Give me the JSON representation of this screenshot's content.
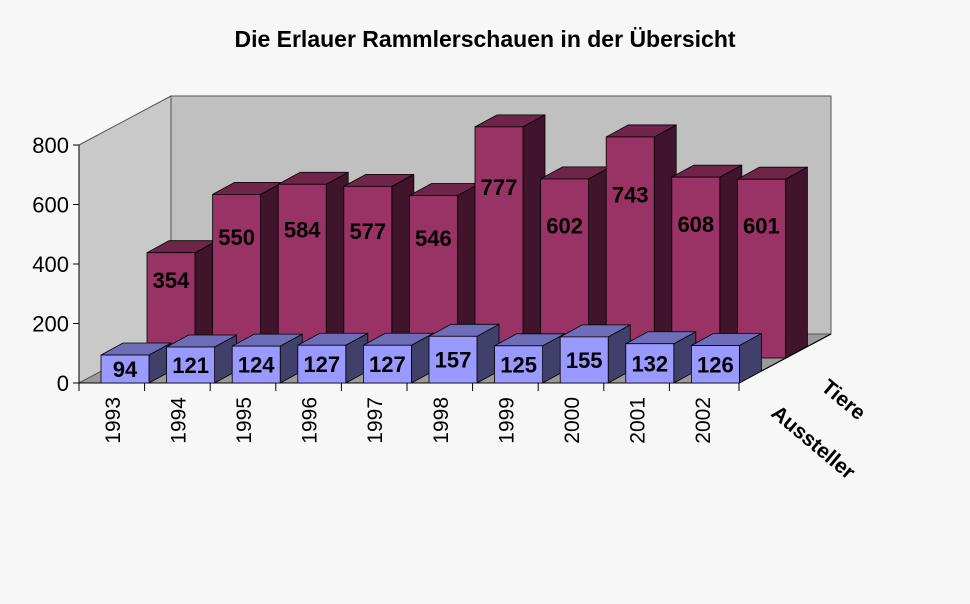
{
  "chart_data": {
    "type": "bar",
    "title": "Die Erlauer Rammlerschauen in der Übersicht",
    "categories": [
      "1993",
      "1994",
      "1995",
      "1996",
      "1997",
      "1998",
      "1999",
      "2000",
      "2001",
      "2002"
    ],
    "series": [
      {
        "name": "Tiere",
        "values": [
          354,
          550,
          584,
          577,
          546,
          777,
          602,
          743,
          608,
          601
        ],
        "color": "#993366"
      },
      {
        "name": "Aussteller",
        "values": [
          94,
          121,
          124,
          127,
          127,
          157,
          125,
          155,
          132,
          126
        ],
        "color": "#9999ff"
      }
    ],
    "yticks": [
      "0",
      "200",
      "400",
      "600",
      "800"
    ],
    "ylim": [
      0,
      800
    ],
    "xlabel": "",
    "ylabel": "",
    "grid": false
  }
}
